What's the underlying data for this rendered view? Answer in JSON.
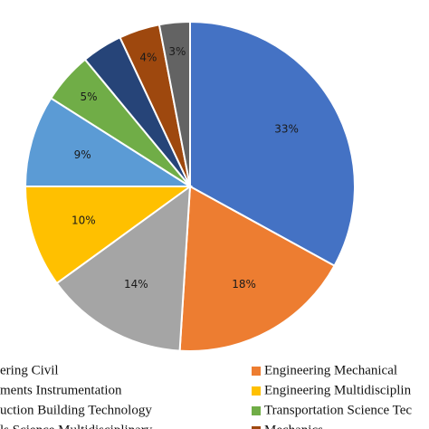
{
  "chart_data": {
    "type": "pie",
    "categories": [
      "ering Civil",
      "Engineering Mechanical",
      "ments Instrumentation",
      "Engineering Multidisciplin",
      "uction Building Technology",
      "Transportation Science Tec",
      "ls Science Multidisciplinary",
      "Mechanics",
      null
    ],
    "values": [
      33,
      18,
      14,
      10,
      9,
      5,
      4,
      4,
      3
    ],
    "value_labels": [
      "33%",
      "18%",
      "14%",
      "10%",
      "9%",
      "5%",
      null,
      "4%",
      "3%"
    ],
    "colors": [
      "#4472c4",
      "#ed7d31",
      "#a5a5a5",
      "#ffc000",
      "#5b9bd5",
      "#70ad47",
      "#264478",
      "#9e480e",
      "#636363"
    ]
  }
}
